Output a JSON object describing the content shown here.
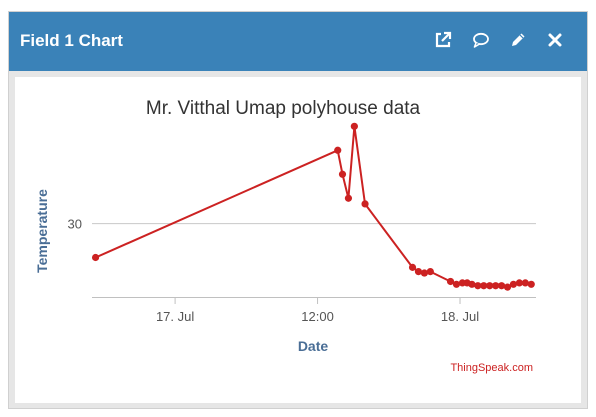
{
  "widget": {
    "title": "Field 1 Chart",
    "icons": [
      "external-link-icon",
      "comment-icon",
      "pencil-icon",
      "close-icon"
    ]
  },
  "chart_data": {
    "type": "line",
    "title": "Mr. Vitthal Umap polyhouse data",
    "xlabel": "Date",
    "ylabel": "Temperature",
    "x_tick_labels": [
      "17. Jul",
      "12:00",
      "18. Jul"
    ],
    "y_tick_labels": [
      "30"
    ],
    "x_ticks": [
      0,
      12,
      24
    ],
    "y_ticks": [
      30
    ],
    "xlim": [
      -7,
      30.4
    ],
    "ylim": [
      24.8,
      36
    ],
    "grid": true,
    "series": [
      {
        "color": "#cc2222",
        "x": [
          -6.7,
          13.7,
          14.1,
          14.6,
          15.1,
          16.0,
          20.0,
          20.5,
          21.0,
          21.5,
          23.2,
          23.7,
          24.2,
          24.6,
          25.0,
          25.5,
          26.0,
          26.5,
          27.0,
          27.5,
          28.0,
          28.5,
          29.0,
          29.5,
          30.0
        ],
        "y": [
          27.6,
          35.2,
          33.5,
          31.8,
          36.9,
          31.4,
          26.9,
          26.6,
          26.5,
          26.6,
          25.9,
          25.7,
          25.8,
          25.8,
          25.7,
          25.6,
          25.6,
          25.6,
          25.6,
          25.6,
          25.5,
          25.7,
          25.8,
          25.8,
          25.7
        ]
      }
    ],
    "credit": "ThingSpeak.com",
    "colors": {
      "line": "#cc2222",
      "axis_title": "#4a6e96",
      "header": "#3a82b8",
      "credit": "#cc2222"
    }
  }
}
